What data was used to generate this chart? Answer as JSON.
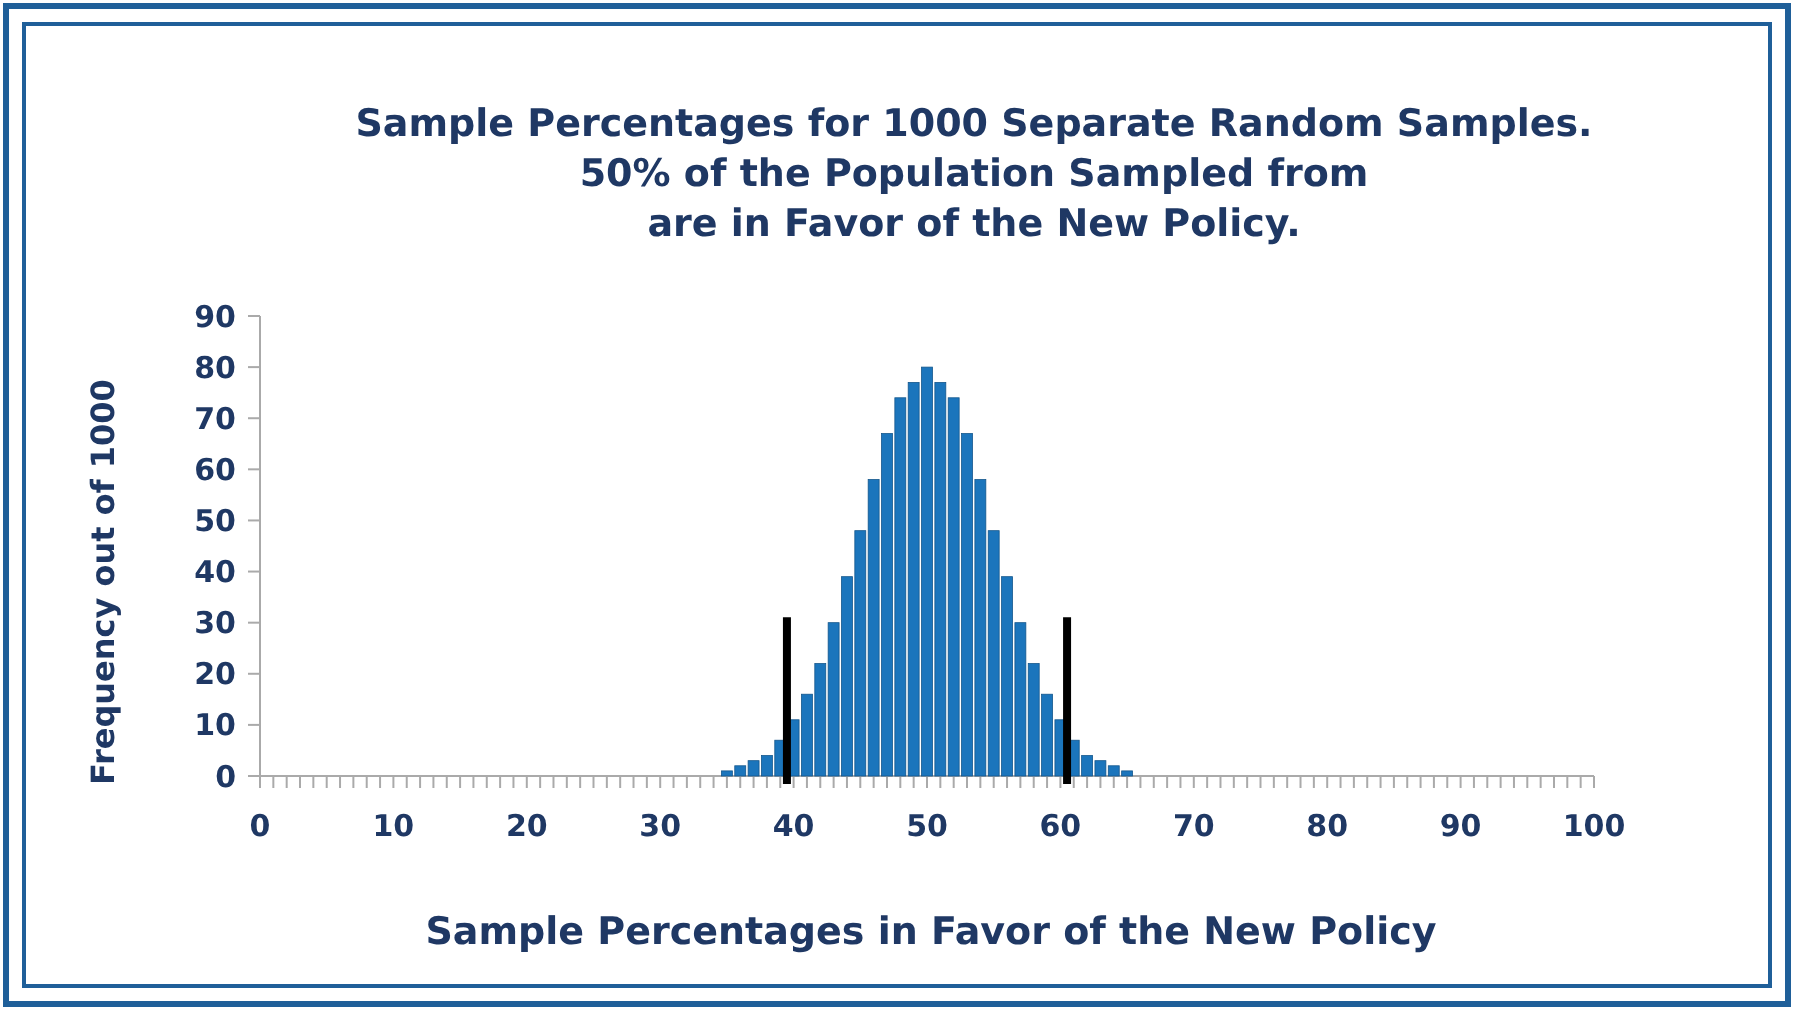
{
  "chart_data": {
    "type": "histogram",
    "title": "Sample Percentages for 1000 Separate Random Samples.\n50% of the Population Sampled from\nare in Favor of the New Policy.",
    "xlabel": "Sample Percentages in Favor of the New Policy",
    "ylabel": "Frequency out of 1000",
    "bins": [
      34.5,
      35.5,
      36.5,
      37.5,
      38.5,
      39.5,
      40.5,
      41.5,
      42.5,
      43.5,
      44.5,
      45.5,
      46.5,
      47.5,
      48.5,
      49.5,
      50.5,
      51.5,
      52.5,
      53.5,
      54.5,
      55.5,
      56.5,
      57.5,
      58.5,
      59.5,
      60.5,
      61.5,
      62.5,
      63.5,
      64.5,
      65.5
    ],
    "values": [
      1,
      2,
      3,
      4,
      7,
      11,
      16,
      22,
      30,
      39,
      48,
      58,
      67,
      74,
      77,
      80,
      77,
      74,
      67,
      58,
      48,
      39,
      30,
      22,
      16,
      11,
      7,
      4,
      3,
      2,
      1
    ],
    "color": "#1b75bc",
    "ref_lines": [
      {
        "axis": "x",
        "value": 39.5,
        "color": "#000000"
      },
      {
        "axis": "x",
        "value": 60.5,
        "color": "#000000"
      }
    ],
    "xlim": [
      0,
      100
    ],
    "ylim": [
      0,
      90
    ],
    "yticks": [
      0,
      10,
      20,
      30,
      40,
      50,
      60,
      70,
      80,
      90
    ],
    "xticks": [
      0,
      {
        "value": 1,
        "label": null
      },
      {
        "value": 2,
        "label": null
      },
      {
        "value": 3,
        "label": null
      },
      {
        "value": 4,
        "label": null
      },
      {
        "value": 5,
        "label": null
      },
      {
        "value": 6,
        "label": null
      },
      {
        "value": 7,
        "label": null
      },
      {
        "value": 8,
        "label": null
      },
      {
        "value": 9,
        "label": null
      },
      10,
      {
        "value": 11,
        "label": null
      },
      {
        "value": 12,
        "label": null
      },
      {
        "value": 13,
        "label": null
      },
      {
        "value": 14,
        "label": null
      },
      {
        "value": 15,
        "label": null
      },
      {
        "value": 16,
        "label": null
      },
      {
        "value": 17,
        "label": null
      },
      {
        "value": 18,
        "label": null
      },
      {
        "value": 19,
        "label": null
      },
      20,
      {
        "value": 21,
        "label": null
      },
      {
        "value": 22,
        "label": null
      },
      {
        "value": 23,
        "label": null
      },
      {
        "value": 24,
        "label": null
      },
      {
        "value": 25,
        "label": null
      },
      {
        "value": 26,
        "label": null
      },
      {
        "value": 27,
        "label": null
      },
      {
        "value": 28,
        "label": null
      },
      {
        "value": 29,
        "label": null
      },
      30,
      {
        "value": 31,
        "label": null
      },
      {
        "value": 32,
        "label": null
      },
      {
        "value": 33,
        "label": null
      },
      {
        "value": 34,
        "label": null
      },
      {
        "value": 35,
        "label": null
      },
      {
        "value": 36,
        "label": null
      },
      {
        "value": 37,
        "label": null
      },
      {
        "value": 38,
        "label": null
      },
      {
        "value": 39,
        "label": null
      },
      40,
      {
        "value": 41,
        "label": null
      },
      {
        "value": 42,
        "label": null
      },
      {
        "value": 43,
        "label": null
      },
      {
        "value": 44,
        "label": null
      },
      {
        "value": 45,
        "label": null
      },
      {
        "value": 46,
        "label": null
      },
      {
        "value": 47,
        "label": null
      },
      {
        "value": 48,
        "label": null
      },
      {
        "value": 49,
        "label": null
      },
      50,
      {
        "value": 51,
        "label": null
      },
      {
        "value": 52,
        "label": null
      },
      {
        "value": 53,
        "label": null
      },
      {
        "value": 54,
        "label": null
      },
      {
        "value": 55,
        "label": null
      },
      {
        "value": 56,
        "label": null
      },
      {
        "value": 57,
        "label": null
      },
      {
        "value": 58,
        "label": null
      },
      {
        "value": 59,
        "label": null
      },
      60,
      {
        "value": 61,
        "label": null
      },
      {
        "value": 62,
        "label": null
      },
      {
        "value": 63,
        "label": null
      },
      {
        "value": 64,
        "label": null
      },
      {
        "value": 65,
        "label": null
      },
      {
        "value": 66,
        "label": null
      },
      {
        "value": 67,
        "label": null
      },
      {
        "value": 68,
        "label": null
      },
      {
        "value": 69,
        "label": null
      },
      70,
      {
        "value": 71,
        "label": null
      },
      {
        "value": 72,
        "label": null
      },
      {
        "value": 73,
        "label": null
      },
      {
        "value": 74,
        "label": null
      },
      {
        "value": 75,
        "label": null
      },
      {
        "value": 76,
        "label": null
      },
      {
        "value": 77,
        "label": null
      },
      {
        "value": 78,
        "label": null
      },
      {
        "value": 79,
        "label": null
      },
      80,
      {
        "value": 81,
        "label": null
      },
      {
        "value": 82,
        "label": null
      },
      {
        "value": 83,
        "label": null
      },
      {
        "value": 84,
        "label": null
      },
      {
        "value": 85,
        "label": null
      },
      {
        "value": 86,
        "label": null
      },
      {
        "value": 87,
        "label": null
      },
      {
        "value": 88,
        "label": null
      },
      {
        "value": 89,
        "label": null
      },
      90,
      {
        "value": 91,
        "label": null
      },
      {
        "value": 92,
        "label": null
      },
      {
        "value": 93,
        "label": null
      },
      {
        "value": 94,
        "label": null
      },
      {
        "value": 95,
        "label": null
      },
      {
        "value": 96,
        "label": null
      },
      {
        "value": 97,
        "label": null
      },
      {
        "value": 98,
        "label": null
      },
      {
        "value": 99,
        "label": null
      },
      100
    ]
  }
}
